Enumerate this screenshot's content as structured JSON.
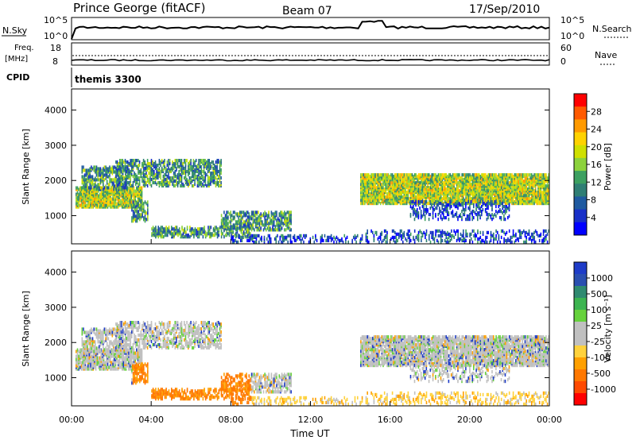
{
  "header": {
    "station": "Prince George (fitACF)",
    "beam": "Beam 07",
    "date": "17/Sep/2010"
  },
  "top_panels": {
    "nsky_label": "N.Sky",
    "nsky_ticks": [
      "10^5",
      "10^0"
    ],
    "nsearch_ticks": [
      "10^5",
      "10^0"
    ],
    "nsearch_label": "N.Search",
    "freq_label_1": "Freq.",
    "freq_label_2": "[MHz]",
    "freq_ticks": [
      "18",
      "8"
    ],
    "nave_ticks": [
      "60",
      "0"
    ],
    "nave_label": "Nave",
    "cpid_label": "CPID",
    "cpid_value": "themis 3300"
  },
  "chart_data": [
    {
      "type": "heatmap",
      "name": "power",
      "ylabel": "Slant Range [km]",
      "ylim": [
        200,
        4600
      ],
      "yticks": [
        "4000",
        "3000",
        "2000",
        "1000"
      ],
      "xlim_hours": [
        0,
        24
      ],
      "colorbar": {
        "label": "Power [dB]",
        "ticks": [
          "28",
          "24",
          "20",
          "16",
          "12",
          "8",
          "4"
        ],
        "colors": [
          "#ff0000",
          "#ff5a00",
          "#ff9a00",
          "#ffd200",
          "#cfe000",
          "#8cd23c",
          "#3ca060",
          "#2f7e74",
          "#1f5aa0",
          "#1830c8",
          "#0000ff"
        ]
      },
      "echo_regions": [
        {
          "t": [
            0.2,
            3.5
          ],
          "range": [
            1250,
            1800
          ],
          "level": "high"
        },
        {
          "t": [
            0.5,
            2.8
          ],
          "range": [
            1750,
            2400
          ],
          "level": "mid"
        },
        {
          "t": [
            2.2,
            7.5
          ],
          "range": [
            1850,
            2600
          ],
          "level": "mid"
        },
        {
          "t": [
            3.0,
            3.8
          ],
          "range": [
            850,
            1400
          ],
          "level": "mid"
        },
        {
          "t": [
            4.0,
            9.0
          ],
          "range": [
            400,
            700
          ],
          "level": "mid"
        },
        {
          "t": [
            7.5,
            11.0
          ],
          "range": [
            600,
            1100
          ],
          "level": "mid"
        },
        {
          "t": [
            8.0,
            14.5
          ],
          "range": [
            250,
            450
          ],
          "level": "low"
        },
        {
          "t": [
            14.5,
            24.0
          ],
          "range": [
            1350,
            2200
          ],
          "level": "high"
        },
        {
          "t": [
            17.0,
            22.0
          ],
          "range": [
            900,
            1400
          ],
          "level": "low"
        },
        {
          "t": [
            14.5,
            24.0
          ],
          "range": [
            250,
            600
          ],
          "level": "low"
        }
      ]
    },
    {
      "type": "heatmap",
      "name": "velocity",
      "ylabel": "Slant Range [km]",
      "ylim": [
        200,
        4600
      ],
      "yticks": [
        "4000",
        "3000",
        "2000",
        "1000"
      ],
      "xticks": [
        "00:00",
        "04:00",
        "08:00",
        "12:00",
        "16:00",
        "20:00",
        "00:00"
      ],
      "xlabel": "Time UT",
      "colorbar": {
        "label": "Velocity [m s⁻¹]",
        "ticks": [
          "1000",
          "500",
          "100",
          "25",
          "-25",
          "-100",
          "-500",
          "-1000"
        ],
        "colors": [
          "#1e3cc8",
          "#2a4fb0",
          "#2f8a70",
          "#3cb450",
          "#66d23c",
          "#c0c0c0",
          "#c0c0c0",
          "#ffd23c",
          "#ffa000",
          "#ff7800",
          "#ff4a00",
          "#ff0000"
        ]
      }
    }
  ]
}
